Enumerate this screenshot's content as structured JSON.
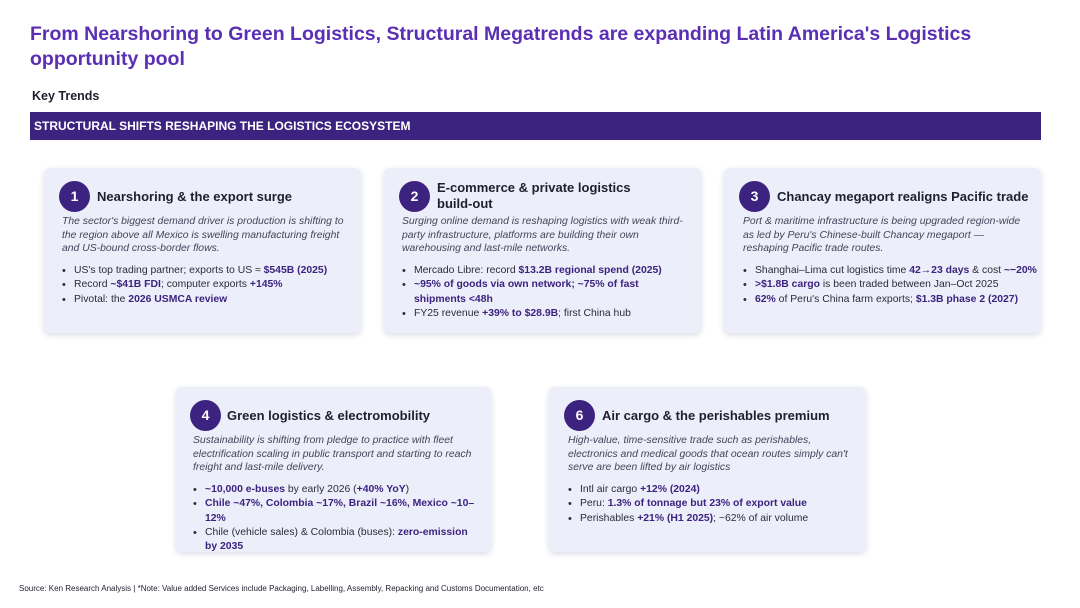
{
  "title": "From Nearshoring to Green Logistics, Structural Megatrends are expanding Latin America's Logistics opportunity pool",
  "subtitle": "Key Trends",
  "banner": "STRUCTURAL SHIFTS RESHAPING THE LOGISTICS ECOSYSTEM",
  "cards": [
    {
      "num": "1",
      "title": "Nearshoring & the export surge",
      "desc": "The sector's biggest demand driver is production is shifting to the region above all Mexico is swelling manufacturing freight and US-bound cross-border flows.",
      "bullets": [
        [
          {
            "t": "US's top trading partner; exports to US ≈ "
          },
          {
            "t": "$545B (2025)",
            "b": true
          }
        ],
        [
          {
            "t": "Record "
          },
          {
            "t": "~$41B FDI",
            "b": true
          },
          {
            "t": "; computer exports "
          },
          {
            "t": "+145%",
            "b": true
          }
        ],
        [
          {
            "t": "Pivotal: the "
          },
          {
            "t": "2026 USMCA review",
            "b": true
          }
        ]
      ]
    },
    {
      "num": "2",
      "title": "E-commerce & private logistics build-out",
      "desc": "Surging online demand is reshaping logistics with weak third-party infrastructure, platforms are building their own warehousing and last-mile networks.",
      "bullets": [
        [
          {
            "t": "Mercado Libre: record "
          },
          {
            "t": "$13.2B regional spend (2025)",
            "b": true
          }
        ],
        [
          {
            "t": "~95% of goods via own network; ~75% of fast shipments <48h",
            "b": true
          }
        ],
        [
          {
            "t": "FY25 revenue "
          },
          {
            "t": "+39% to $28.9B",
            "b": true
          },
          {
            "t": "; first China hub"
          }
        ]
      ]
    },
    {
      "num": "3",
      "title": "Chancay megaport realigns Pacific trade",
      "desc": "Port & maritime infrastructure is being upgraded region-wide as  led by Peru's Chinese-built Chancay megaport — reshaping Pacific trade routes.",
      "bullets": [
        [
          {
            "t": "Shanghai–Lima cut  logistics time "
          },
          {
            "t": "42→23 days",
            "b": true
          },
          {
            "t": " & cost "
          },
          {
            "t": "~−20%",
            "b": true
          }
        ],
        [
          {
            "t": ">$1.8B cargo",
            "b": true
          },
          {
            "t": " is been traded between Jan–Oct 2025"
          }
        ],
        [
          {
            "t": "62%",
            "b": true
          },
          {
            "t": " of Peru's China farm exports; "
          },
          {
            "t": "$1.3B phase 2 (2027)",
            "b": true
          }
        ]
      ]
    },
    {
      "num": "4",
      "title": "Green logistics & electromobility",
      "desc": "Sustainability is shifting from pledge to practice with fleet electrification scaling in public transport and starting to reach freight and last-mile delivery.",
      "bullets": [
        [
          {
            "t": "~10,000 e-buses",
            "b": true
          },
          {
            "t": " by early 2026 ("
          },
          {
            "t": "+40% YoY",
            "b": true
          },
          {
            "t": ")"
          }
        ],
        [
          {
            "t": "Chile ~47%, Colombia ~17%, Brazil ~16%, Mexico ~10–12%",
            "b": true
          }
        ],
        [
          {
            "t": "Chile (vehicle sales) & Colombia (buses): "
          },
          {
            "t": "zero-emission by 2035",
            "b": true
          }
        ]
      ]
    },
    {
      "num": "6",
      "title": "Air cargo & the perishables premium",
      "desc": "High-value, time-sensitive trade such as perishables, electronics and medical goods that ocean routes simply can't serve are been lifted by air logistics",
      "bullets": [
        [
          {
            "t": "Intl air cargo "
          },
          {
            "t": "+12% (2024)",
            "b": true
          }
        ],
        [
          {
            "t": "Peru: "
          },
          {
            "t": "1.3% of tonnage but 23% of export value",
            "b": true
          }
        ],
        [
          {
            "t": "Perishables "
          },
          {
            "t": "+21% (H1 2025)",
            "b": true
          },
          {
            "t": "; ~62% of air volume"
          }
        ]
      ]
    }
  ],
  "source": "Source: Ken Research Analysis | *Note: Value added Services include Packaging, Labelling, Assembly, Repacking and Customs Documentation, etc"
}
